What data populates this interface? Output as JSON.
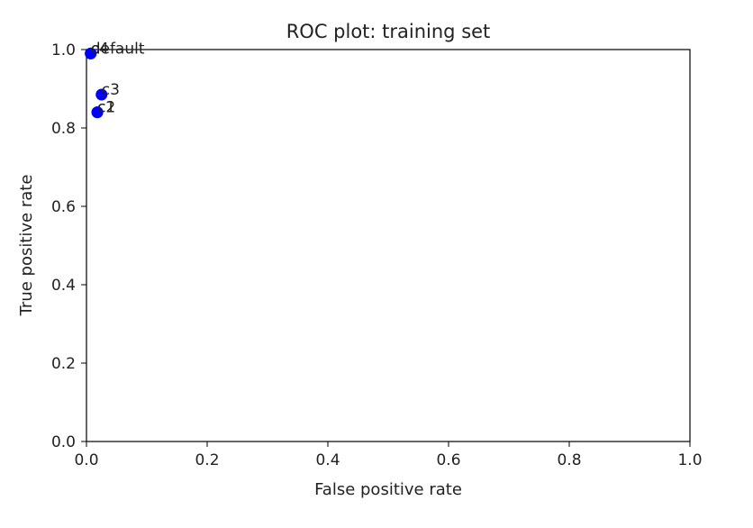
{
  "chart_data": {
    "type": "scatter",
    "title": "ROC plot: training set",
    "xlabel": "False positive rate",
    "ylabel": "True positive rate",
    "xlim": [
      0.0,
      1.0
    ],
    "ylim": [
      0.0,
      1.0
    ],
    "x_ticks": [
      "0.0",
      "0.2",
      "0.4",
      "0.6",
      "0.8",
      "1.0"
    ],
    "y_ticks": [
      "0.0",
      "0.2",
      "0.4",
      "0.6",
      "0.8",
      "1.0"
    ],
    "grid": false,
    "legend": false,
    "marker_color": "#0000ff",
    "points": [
      {
        "label": "default",
        "x": 0.007,
        "y": 0.99
      },
      {
        "label": "c4",
        "x": 0.007,
        "y": 0.99
      },
      {
        "label": "c3",
        "x": 0.025,
        "y": 0.885
      },
      {
        "label": "c2",
        "x": 0.018,
        "y": 0.84
      },
      {
        "label": "c1",
        "x": 0.018,
        "y": 0.84
      }
    ]
  }
}
